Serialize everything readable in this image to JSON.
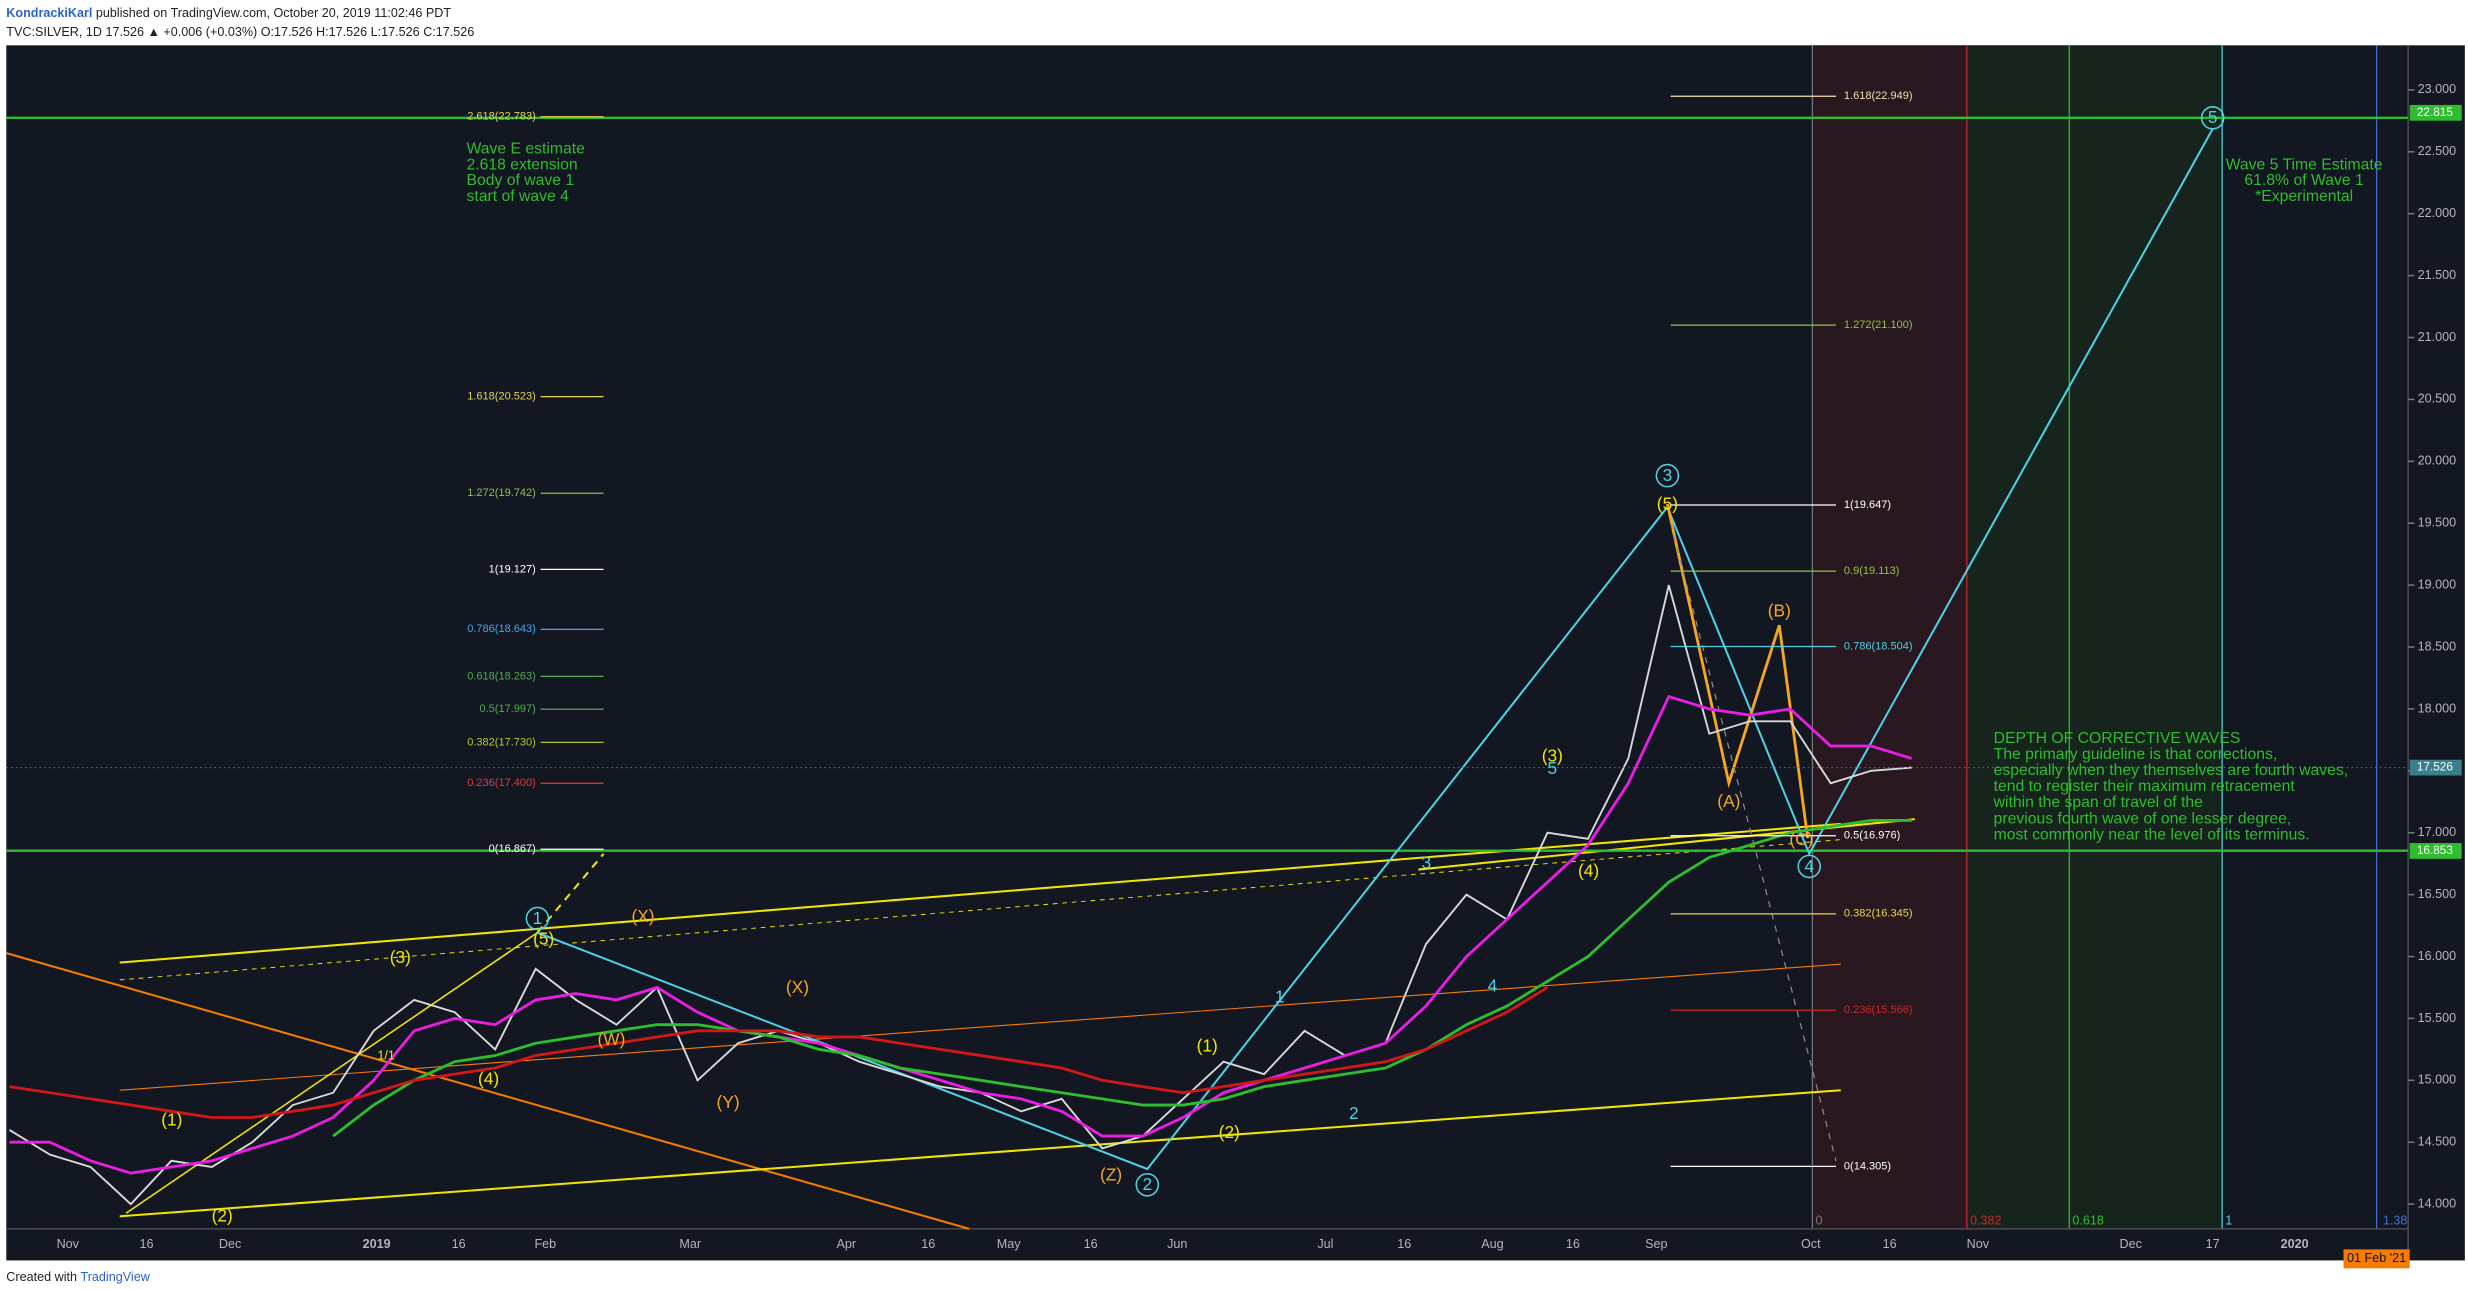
{
  "header": {
    "author": "KondrackiKarl",
    "published": "published on TradingView.com, October 20, 2019 11:02:46 PDT",
    "symbol_line": "TVC:SILVER, 1D 17.526 ▲ +0.006 (+0.03%) O:17.526 H:17.526 L:17.526 C:17.526"
  },
  "footer": {
    "created": "Created with",
    "brand": "TradingView"
  },
  "chart_data": {
    "type": "line",
    "xtick_labels": [
      "Nov",
      "16",
      "Dec",
      "2019",
      "16",
      "Feb",
      "Mar",
      "Apr",
      "16",
      "May",
      "16",
      "Jun",
      "Jul",
      "16",
      "Aug",
      "16",
      "Sep",
      "Oct",
      "16",
      "Nov",
      "Dec",
      "17",
      "2020"
    ],
    "series": [
      {
        "color": "#d9d9d9",
        "values": [
          14.6,
          14.4,
          14.3,
          14.0,
          14.35,
          14.3,
          14.5,
          14.8,
          14.9,
          15.4,
          15.65,
          15.55,
          15.25,
          15.9,
          15.65,
          15.45,
          15.75,
          15.0,
          15.3,
          15.4,
          15.3,
          15.15,
          15.05,
          14.95,
          14.9,
          14.75,
          14.85,
          14.45,
          14.55,
          14.85,
          15.15,
          15.05,
          15.4,
          15.2,
          15.3,
          16.1,
          16.5,
          16.3,
          17.0,
          16.95,
          17.6,
          19.0,
          17.8,
          17.9,
          17.9,
          17.4,
          17.5,
          17.526
        ]
      },
      {
        "color": "#e91ee3",
        "values": [
          14.5,
          14.5,
          14.35,
          14.25,
          14.3,
          14.35,
          14.45,
          14.55,
          14.7,
          15.0,
          15.4,
          15.5,
          15.45,
          15.65,
          15.7,
          15.65,
          15.75,
          15.55,
          15.4,
          15.35,
          15.3,
          15.2,
          15.1,
          15.0,
          14.9,
          14.85,
          14.75,
          14.55,
          14.55,
          14.7,
          14.9,
          15.0,
          15.1,
          15.2,
          15.3,
          15.6,
          16.0,
          16.3,
          16.6,
          16.9,
          17.4,
          18.1,
          18.0,
          17.95,
          18.0,
          17.7,
          17.7,
          17.6
        ]
      },
      {
        "color": "#2ebd2e",
        "values": [
          null,
          null,
          null,
          null,
          null,
          null,
          null,
          null,
          14.55,
          14.8,
          15.0,
          15.15,
          15.2,
          15.3,
          15.35,
          15.4,
          15.45,
          15.45,
          15.4,
          15.35,
          15.25,
          15.2,
          15.1,
          15.05,
          15.0,
          14.95,
          14.9,
          14.85,
          14.8,
          14.8,
          14.85,
          14.95,
          15.0,
          15.05,
          15.1,
          15.25,
          15.45,
          15.6,
          15.8,
          16.0,
          16.3,
          16.6,
          16.8,
          16.9,
          17.0,
          17.05,
          17.1,
          17.1
        ]
      },
      {
        "color": "#d01818",
        "values": [
          14.95,
          14.9,
          14.85,
          14.8,
          14.75,
          14.7,
          14.7,
          14.75,
          14.8,
          14.9,
          15.0,
          15.05,
          15.1,
          15.2,
          15.25,
          15.3,
          15.35,
          15.4,
          15.4,
          15.4,
          15.35,
          15.35,
          15.3,
          15.25,
          15.2,
          15.15,
          15.1,
          15.0,
          14.95,
          14.9,
          14.95,
          15.0,
          15.05,
          15.1,
          15.15,
          15.25,
          15.4,
          15.55,
          15.75,
          null,
          null,
          null,
          null,
          null,
          null,
          null,
          null,
          null
        ]
      }
    ],
    "ylim": [
      13.8,
      23.36
    ],
    "yticks": [
      {
        "value": 14,
        "label": "14.000"
      },
      {
        "value": 14.5,
        "label": "14.500"
      },
      {
        "value": 15,
        "label": "15.000"
      },
      {
        "value": 15.5,
        "label": "15.500"
      },
      {
        "value": 16,
        "label": "16.000"
      },
      {
        "value": 16.5,
        "label": "16.500"
      },
      {
        "value": 17,
        "label": "17.000"
      },
      {
        "value": 17.5,
        "label": "17.500"
      },
      {
        "value": 18,
        "label": "18.000"
      },
      {
        "value": 18.5,
        "label": "18.500"
      },
      {
        "value": 19,
        "label": "19.000"
      },
      {
        "value": 19.5,
        "label": "19.500"
      },
      {
        "value": 20,
        "label": "20.000"
      },
      {
        "value": 20.5,
        "label": "20.500"
      },
      {
        "value": 21,
        "label": "21.000"
      },
      {
        "value": 21.5,
        "label": "21.500"
      },
      {
        "value": 22,
        "label": "22.000"
      },
      {
        "value": 22.5,
        "label": "22.500"
      },
      {
        "value": 23,
        "label": "23.000"
      }
    ],
    "price_labels": [
      {
        "value": 22.815,
        "label": "22.815",
        "color": "#2ebd2e"
      },
      {
        "value": 17.526,
        "label": "17.526",
        "color": "#3a7f8c"
      },
      {
        "value": 16.853,
        "label": "16.853",
        "color": "#2ebd2e"
      }
    ],
    "fib_left": [
      {
        "label": "2.618(22.783)",
        "value": 22.783,
        "color": "#e8d44d"
      },
      {
        "label": "1.618(20.523)",
        "value": 20.523,
        "color": "#e8d44d"
      },
      {
        "label": "1.272(19.742)",
        "value": 19.742,
        "color": "#8bc34a"
      },
      {
        "label": "1(19.127)",
        "value": 19.127,
        "color": "#ffffff"
      },
      {
        "label": "0.786(18.643)",
        "value": 18.643,
        "color": "#3fa9f5"
      },
      {
        "label": "0.618(18.263)",
        "value": 18.263,
        "color": "#4caf50"
      },
      {
        "label": "0.5(17.997)",
        "value": 17.997,
        "color": "#4caf50"
      },
      {
        "label": "0.382(17.730)",
        "value": 17.73,
        "color": "#b5c832"
      },
      {
        "label": "0.236(17.400)",
        "value": 17.4,
        "color": "#e53935"
      },
      {
        "label": "0(16.867)",
        "value": 16.867,
        "color": "#ffffff"
      }
    ],
    "fib_right": [
      {
        "label": "1.618(22.949)",
        "value": 22.949,
        "color": "#f5deb3"
      },
      {
        "label": "1.272(21.100)",
        "value": 21.1,
        "color": "#8bc34a"
      },
      {
        "label": "1(19.647)",
        "value": 19.647,
        "color": "#ffffff"
      },
      {
        "label": "0.9(19.113)",
        "value": 19.113,
        "color": "#8bc34a"
      },
      {
        "label": "0.786(18.504)",
        "value": 18.504,
        "color": "#4dd0e1"
      },
      {
        "label": "0.5(16.976)",
        "value": 16.976,
        "color": "#ffffff"
      },
      {
        "label": "0.382(16.345)",
        "value": 16.345,
        "color": "#e8d44d"
      },
      {
        "label": "0.236(15.566)",
        "value": 15.566,
        "color": "#c62828"
      },
      {
        "label": "0(14.305)",
        "value": 14.305,
        "color": "#ffffff"
      }
    ],
    "annotations": {
      "wave_e": [
        "Wave E estimate",
        "2.618 extension",
        "Body of wave 1",
        "start of wave 4"
      ],
      "wave5_time": [
        "Wave 5 Time Estimate",
        "61.8% of Wave 1",
        "*Experimental"
      ],
      "depth": [
        "DEPTH OF CORRECTIVE WAVES",
        "The primary guideline is that corrections,",
        "especially when they themselves are fourth waves,",
        "tend to register their maximum retracement",
        "within the span of travel of the",
        "previous fourth wave of one lesser degree,",
        "most commonly near the level of its terminus."
      ]
    },
    "wave_labels": [
      {
        "text": "1",
        "color": "#4dd0e1"
      },
      {
        "text": "2",
        "color": "#4dd0e1"
      },
      {
        "text": "3",
        "color": "#4dd0e1"
      },
      {
        "text": "4",
        "color": "#4dd0e1"
      },
      {
        "text": "5",
        "color": "#4dd0e1"
      },
      {
        "text": "(1)",
        "color": "#f2e600"
      },
      {
        "text": "(2)",
        "color": "#f2e600"
      },
      {
        "text": "(3)",
        "color": "#f2e600"
      },
      {
        "text": "(4)",
        "color": "#f2e600"
      },
      {
        "text": "(5)",
        "color": "#f2e600"
      },
      {
        "text": "(W)",
        "color": "#f5a623"
      },
      {
        "text": "(X)",
        "color": "#f5a623"
      },
      {
        "text": "(Y)",
        "color": "#f5a623"
      },
      {
        "text": "(X)",
        "color": "#f5a623"
      },
      {
        "text": "(Z)",
        "color": "#f5a623"
      },
      {
        "text": "(1)",
        "color": "#f2e600"
      },
      {
        "text": "(2)",
        "color": "#f2e600"
      },
      {
        "text": "1",
        "color": "#4dd0e1"
      },
      {
        "text": "2",
        "color": "#4dd0e1"
      },
      {
        "text": "3",
        "color": "#4dd0e1"
      },
      {
        "text": "4",
        "color": "#4dd0e1"
      },
      {
        "text": "5",
        "color": "#4dd0e1"
      },
      {
        "text": "(3)",
        "color": "#f2e600"
      },
      {
        "text": "(4)",
        "color": "#f2e600"
      },
      {
        "text": "(5)",
        "color": "#f2e600"
      },
      {
        "text": "(A)",
        "color": "#f5a623"
      },
      {
        "text": "(B)",
        "color": "#f5a623"
      },
      {
        "text": "(C)",
        "color": "#f5a623"
      },
      {
        "text": "1/1",
        "color": "#f2e600"
      }
    ],
    "time_fib_labels": [
      "0",
      "0.382",
      "0.618",
      "1",
      "1.38"
    ],
    "date_marker": "01 Feb '21"
  }
}
